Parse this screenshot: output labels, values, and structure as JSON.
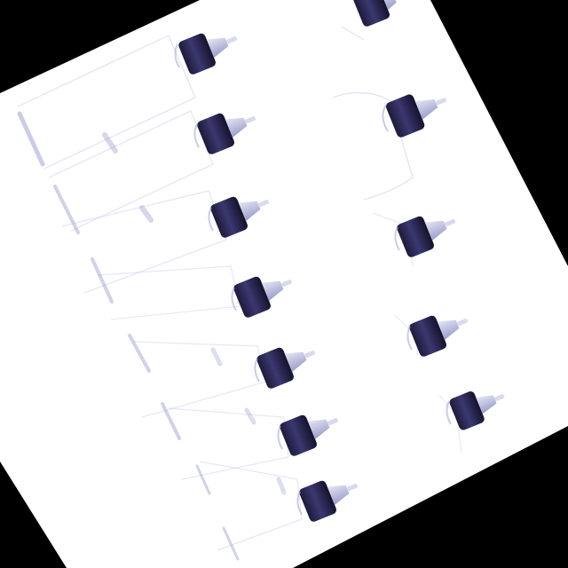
{
  "image": {
    "subject": "bottles-with-twist-cap-nozzles",
    "bottle_count": 13,
    "colors": {
      "background": "#000000",
      "paper": "#ffffff",
      "cap": "#262246",
      "cap_highlight": "#4a4780",
      "nozzle": "#b9bbdc",
      "bottle_outline": "#bfc0e6",
      "shadow": "#8f90c8"
    }
  }
}
